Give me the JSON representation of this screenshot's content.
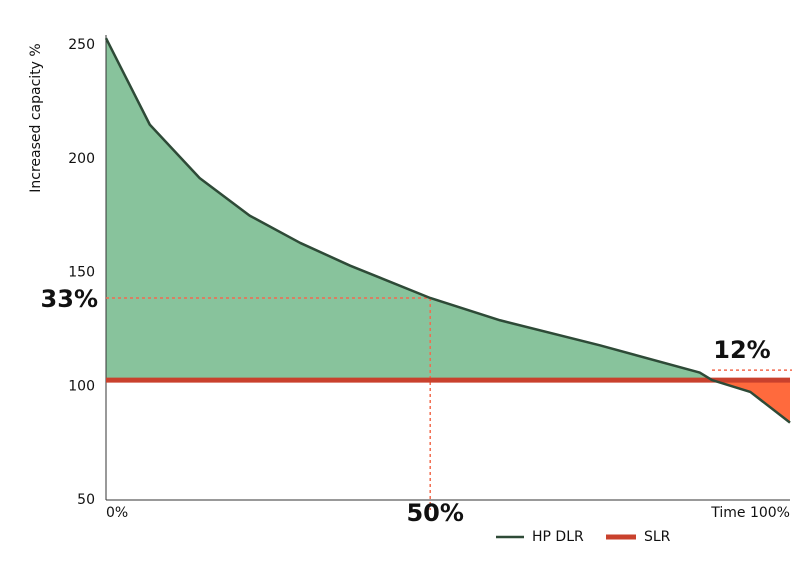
{
  "chart_data": {
    "type": "area-line",
    "y_label": "Increased capacity %",
    "x": [
      0,
      6.4,
      13.7,
      21,
      28.4,
      35.7,
      47.4,
      57.6,
      72.2,
      86.8,
      88.6,
      94.2,
      100
    ],
    "series": [
      {
        "name": "HP DLR",
        "color": "#2e4a37",
        "values": [
          253,
          215,
          191.5,
          175,
          163,
          153,
          138.8,
          129,
          118,
          106,
          102.7,
          97.5,
          84
        ]
      },
      {
        "name": "SLR",
        "color": "#c9412d",
        "values": [
          102.7,
          102.7,
          102.7,
          102.7,
          102.7,
          102.7,
          102.7,
          102.7,
          102.7,
          102.7,
          102.7,
          102.7,
          102.7
        ]
      }
    ],
    "fill_above_color": "#88c39c",
    "fill_below_color": "#ff6a3d",
    "annotations": [
      {
        "text": "33%"
      },
      {
        "text": "50%"
      },
      {
        "text": "12%"
      }
    ],
    "annotation_color": "#f26b4f",
    "xlim": [
      0,
      100
    ],
    "ylim": [
      50,
      250
    ],
    "xticks": [
      {
        "value": 0,
        "label": "0%"
      },
      {
        "value": 100,
        "label": "Time 100%"
      }
    ],
    "yticks": [
      50,
      100,
      150,
      200,
      250
    ]
  }
}
